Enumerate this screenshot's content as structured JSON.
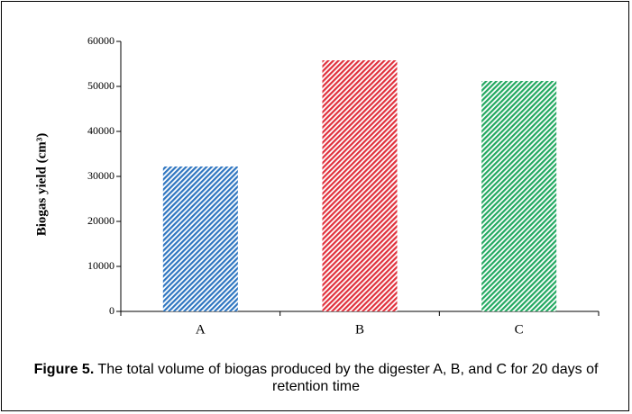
{
  "chart_data": {
    "type": "bar",
    "y_label": "Biogas yield (cm³)",
    "categories": [
      "A",
      "B",
      "C"
    ],
    "values": [
      32200,
      55800,
      51200
    ],
    "colors": [
      "#2e75c0",
      "#e0303c",
      "#22a860"
    ],
    "ylim": [
      0,
      60000
    ],
    "yticks": [
      0,
      10000,
      20000,
      30000,
      40000,
      50000,
      60000
    ],
    "caption_label": "Figure 5.",
    "caption": "The total volume of biogas produced by the digester A, B, and C for 20 days of retention time"
  }
}
